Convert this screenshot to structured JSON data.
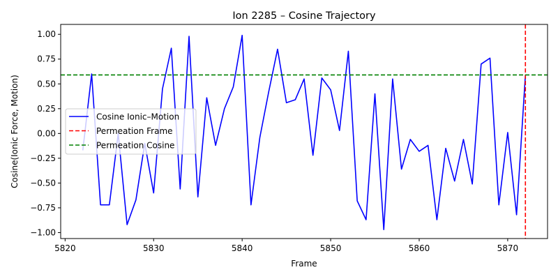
{
  "chart_data": {
    "type": "line",
    "title": "Ion 2285 – Cosine Trajectory",
    "xlabel": "Frame",
    "ylabel": "Cosine(Ionic Force, Motion)",
    "xlim": [
      5819.5,
      5874.5
    ],
    "ylim": [
      -1.06,
      1.1
    ],
    "xticks": [
      5820,
      5830,
      5840,
      5850,
      5860,
      5870
    ],
    "yticks": [
      -1.0,
      -0.75,
      -0.5,
      -0.25,
      0.0,
      0.25,
      0.5,
      0.75,
      1.0
    ],
    "ytick_labels": [
      "−1.00",
      "−0.75",
      "−0.50",
      "−0.25",
      "0.00",
      "0.25",
      "0.50",
      "0.75",
      "1.00"
    ],
    "grid": false,
    "legend_position": "center-left",
    "series": [
      {
        "name": "Cosine Ionic–Motion",
        "color": "#0000ff",
        "style": "solid",
        "x": [
          5822,
          5823,
          5824,
          5825,
          5826,
          5827,
          5828,
          5829,
          5830,
          5831,
          5832,
          5833,
          5834,
          5835,
          5836,
          5837,
          5838,
          5839,
          5840,
          5841,
          5842,
          5843,
          5844,
          5845,
          5846,
          5847,
          5848,
          5849,
          5850,
          5851,
          5852,
          5853,
          5854,
          5855,
          5856,
          5857,
          5858,
          5859,
          5860,
          5861,
          5862,
          5863,
          5864,
          5865,
          5866,
          5867,
          5868,
          5869,
          5870,
          5871,
          5872
        ],
        "y": [
          -0.17,
          0.6,
          -0.72,
          -0.72,
          0.0,
          -0.92,
          -0.67,
          -0.1,
          -0.6,
          0.45,
          0.86,
          -0.56,
          0.98,
          -0.64,
          0.36,
          -0.12,
          0.25,
          0.47,
          0.99,
          -0.72,
          -0.04,
          0.42,
          0.85,
          0.31,
          0.34,
          0.55,
          -0.22,
          0.56,
          0.44,
          0.03,
          0.83,
          -0.68,
          -0.87,
          0.4,
          -0.97,
          0.55,
          -0.36,
          -0.06,
          -0.18,
          -0.12,
          -0.87,
          -0.15,
          -0.48,
          -0.06,
          -0.51,
          0.7,
          0.76,
          -0.72,
          0.01,
          -0.82,
          0.59
        ]
      }
    ],
    "reference_lines": [
      {
        "name": "Permeation Frame",
        "orientation": "vertical",
        "value": 5872,
        "color": "#ff0000",
        "style": "dashed"
      },
      {
        "name": "Permeation Cosine",
        "orientation": "horizontal",
        "value": 0.59,
        "color": "#008000",
        "style": "dashed"
      }
    ]
  }
}
